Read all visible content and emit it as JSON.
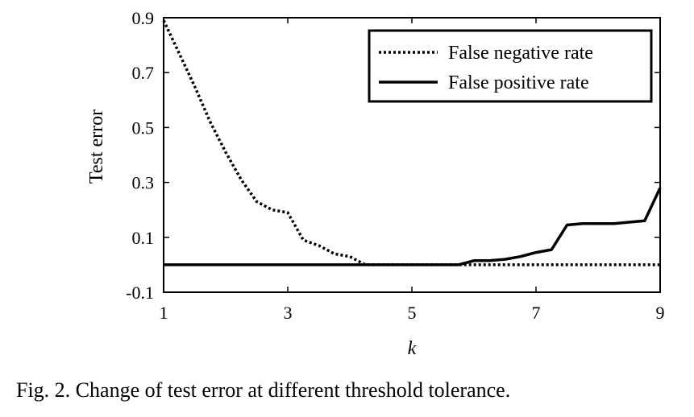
{
  "caption": "Fig. 2. Change of test error at different threshold tolerance.",
  "chart_data": {
    "type": "line",
    "title": "",
    "xlabel": "k",
    "ylabel": "Test error",
    "xlim": [
      1,
      9
    ],
    "ylim": [
      -0.1,
      0.9
    ],
    "xticks": [
      1,
      3,
      5,
      7,
      9
    ],
    "yticks": [
      -0.1,
      0.1,
      0.3,
      0.5,
      0.7,
      0.9
    ],
    "xtick_labels": [
      "1",
      "3",
      "5",
      "7",
      "9"
    ],
    "ytick_labels": [
      "-0.1",
      "0.1",
      "0.3",
      "0.5",
      "0.7",
      "0.9"
    ],
    "grid": false,
    "legend_position": "top-right",
    "series": [
      {
        "name": "False negative rate",
        "style": "dotted",
        "color": "#000000",
        "x": [
          1,
          1.25,
          1.5,
          1.75,
          2,
          2.25,
          2.5,
          2.75,
          3,
          3.25,
          3.5,
          3.75,
          4,
          4.25,
          4.5,
          4.75,
          5,
          5.25,
          5.5,
          5.75,
          6,
          6.25,
          6.5,
          6.75,
          7,
          7.25,
          7.5,
          7.75,
          8,
          8.25,
          8.5,
          8.75,
          9
        ],
        "y": [
          0.89,
          0.77,
          0.65,
          0.52,
          0.41,
          0.31,
          0.23,
          0.2,
          0.19,
          0.09,
          0.07,
          0.04,
          0.03,
          0.0,
          0.0,
          0.0,
          0.0,
          0.0,
          0.0,
          0.0,
          0.0,
          0.0,
          0.0,
          0.0,
          0.0,
          0.0,
          0.0,
          0.0,
          0.0,
          0.0,
          0.0,
          0.0,
          0.0
        ]
      },
      {
        "name": "False positive rate",
        "style": "solid",
        "color": "#000000",
        "x": [
          1,
          1.5,
          2,
          2.5,
          3,
          3.5,
          4,
          4.5,
          5,
          5.5,
          5.75,
          6,
          6.25,
          6.5,
          6.75,
          7,
          7.25,
          7.5,
          7.75,
          8,
          8.25,
          8.5,
          8.75,
          9
        ],
        "y": [
          0.0,
          0.0,
          0.0,
          0.0,
          0.0,
          0.0,
          0.0,
          0.0,
          0.0,
          0.0,
          0.0,
          0.015,
          0.015,
          0.02,
          0.03,
          0.045,
          0.055,
          0.145,
          0.15,
          0.15,
          0.15,
          0.155,
          0.16,
          0.28
        ]
      }
    ]
  }
}
